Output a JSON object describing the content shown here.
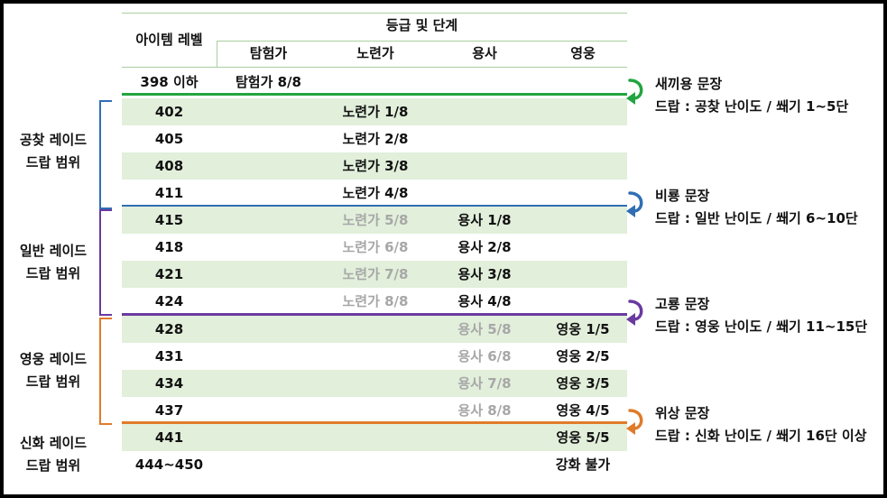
{
  "table": {
    "header": {
      "level_label": "아이템 레벨",
      "group_label": "등급 및 단계",
      "tiers": [
        "탐험가",
        "노련가",
        "용사",
        "영웅"
      ]
    },
    "rows": [
      {
        "level": "398 이하",
        "explorer": "탐험가 8/8",
        "trained": "",
        "warrior": "",
        "hero": ""
      },
      {
        "level": "402",
        "explorer": "",
        "trained": "노련가 1/8",
        "warrior": "",
        "hero": ""
      },
      {
        "level": "405",
        "explorer": "",
        "trained": "노련가 2/8",
        "warrior": "",
        "hero": ""
      },
      {
        "level": "408",
        "explorer": "",
        "trained": "노련가 3/8",
        "warrior": "",
        "hero": ""
      },
      {
        "level": "411",
        "explorer": "",
        "trained": "노련가 4/8",
        "warrior": "",
        "hero": ""
      },
      {
        "level": "415",
        "explorer": "",
        "trained": "노련가 5/8",
        "warrior": "용사 1/8",
        "hero": ""
      },
      {
        "level": "418",
        "explorer": "",
        "trained": "노련가 6/8",
        "warrior": "용사 2/8",
        "hero": ""
      },
      {
        "level": "421",
        "explorer": "",
        "trained": "노련가 7/8",
        "warrior": "용사 3/8",
        "hero": ""
      },
      {
        "level": "424",
        "explorer": "",
        "trained": "노련가 8/8",
        "warrior": "용사 4/8",
        "hero": ""
      },
      {
        "level": "428",
        "explorer": "",
        "trained": "",
        "warrior": "용사 5/8",
        "hero": "영웅 1/5"
      },
      {
        "level": "431",
        "explorer": "",
        "trained": "",
        "warrior": "용사 6/8",
        "hero": "영웅 2/5"
      },
      {
        "level": "434",
        "explorer": "",
        "trained": "",
        "warrior": "용사 7/8",
        "hero": "영웅 3/5"
      },
      {
        "level": "437",
        "explorer": "",
        "trained": "",
        "warrior": "용사 8/8",
        "hero": "영웅 4/5"
      },
      {
        "level": "441",
        "explorer": "",
        "trained": "",
        "warrior": "",
        "hero": "영웅 5/5"
      },
      {
        "level": "444~450",
        "explorer": "",
        "trained": "",
        "warrior": "",
        "hero": "강화 불가"
      }
    ]
  },
  "groups": [
    {
      "line1": "공찾 레이드",
      "line2": "드랍 범위",
      "color": "#2f6eb5"
    },
    {
      "line1": "일반 레이드",
      "line2": "드랍 범위",
      "color": "#6a3aa0"
    },
    {
      "line1": "영웅 레이드",
      "line2": "드랍 범위",
      "color": "#e07b2a"
    },
    {
      "line1": "신화 레이드",
      "line2": "드랍 범위"
    }
  ],
  "notes": [
    {
      "title": "새끼용 문장",
      "detail": "드랍 : 공찾 난이도 / 쐐기 1~5단",
      "color": "#22a540"
    },
    {
      "title": "비룡 문장",
      "detail": "드랍 : 일반 난이도 / 쐐기 6~10단",
      "color": "#2f6eb5"
    },
    {
      "title": "고룡 문장",
      "detail": "드랍 : 영웅 난이도 / 쐐기 11~15단",
      "color": "#6a3aa0"
    },
    {
      "title": "위상 문장",
      "detail": "드랍 : 신화 난이도 / 쐐기 16단 이상",
      "color": "#e07b2a"
    }
  ],
  "colors": {
    "row_shade": "#e2efdb",
    "grid_line": "#a9cfa0",
    "faded_text": "#a7a7a7"
  }
}
